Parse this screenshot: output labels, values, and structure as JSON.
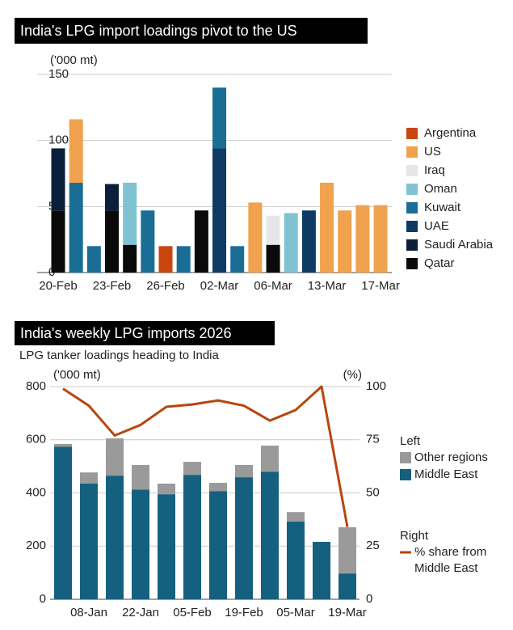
{
  "chart_data": [
    {
      "type": "bar",
      "stacked": true,
      "title": "India's LPG import loadings pivot to the US",
      "y_unit": "('000 mt)",
      "categories": [
        "20-Feb",
        null,
        null,
        "23-Feb",
        null,
        null,
        "26-Feb",
        null,
        null,
        "02-Mar",
        null,
        null,
        "06-Mar",
        null,
        null,
        "13-Mar",
        null,
        null,
        "17-Mar"
      ],
      "series": [
        {
          "name": "Qatar",
          "color": "#0a0a0a",
          "values": [
            47,
            null,
            null,
            47,
            21,
            null,
            null,
            null,
            47,
            null,
            null,
            null,
            21,
            null,
            null,
            null,
            null,
            null,
            null
          ]
        },
        {
          "name": "Saudi Arabia",
          "color": "#0b1e3a",
          "values": [
            47,
            null,
            null,
            20,
            null,
            null,
            null,
            null,
            null,
            null,
            null,
            null,
            null,
            null,
            null,
            null,
            null,
            null,
            null
          ]
        },
        {
          "name": "UAE",
          "color": "#0f3a63",
          "values": [
            null,
            null,
            null,
            null,
            null,
            null,
            null,
            null,
            null,
            94,
            null,
            null,
            null,
            null,
            47,
            null,
            null,
            null,
            null
          ]
        },
        {
          "name": "Kuwait",
          "color": "#1a6e96",
          "values": [
            null,
            68,
            20,
            null,
            null,
            47,
            null,
            20,
            null,
            46,
            20,
            null,
            null,
            null,
            null,
            null,
            null,
            null,
            null
          ]
        },
        {
          "name": "Oman",
          "color": "#7fc3d3",
          "values": [
            null,
            null,
            null,
            null,
            47,
            null,
            null,
            null,
            null,
            null,
            null,
            null,
            null,
            45,
            null,
            null,
            null,
            null,
            null
          ]
        },
        {
          "name": "Iraq",
          "color": "#e6e6ea",
          "values": [
            null,
            null,
            null,
            null,
            null,
            null,
            null,
            null,
            null,
            null,
            null,
            null,
            22,
            null,
            null,
            null,
            null,
            null,
            null
          ]
        },
        {
          "name": "US",
          "color": "#f0a24e",
          "values": [
            null,
            48,
            null,
            null,
            null,
            null,
            null,
            null,
            null,
            null,
            null,
            53,
            null,
            null,
            null,
            68,
            47,
            51,
            51
          ]
        },
        {
          "name": "Argentina",
          "color": "#c8470f",
          "values": [
            null,
            null,
            null,
            null,
            null,
            null,
            20,
            null,
            null,
            null,
            null,
            null,
            null,
            null,
            null,
            null,
            null,
            null,
            null
          ]
        }
      ],
      "ylim": [
        0,
        150
      ],
      "yticks": [
        0,
        50,
        100,
        150
      ],
      "grid": true
    },
    {
      "type": "bar",
      "stacked": true,
      "title": "India's weekly LPG imports 2026",
      "subtitle": "LPG tanker loadings heading to India",
      "y_unit": "('000 mt)",
      "y2_unit": "(%)",
      "legend_titles": [
        "Left",
        "Right"
      ],
      "categories": [
        null,
        "08-Jan",
        null,
        "22-Jan",
        null,
        "05-Feb",
        null,
        "19-Feb",
        null,
        "05-Mar",
        null,
        "19-Mar"
      ],
      "series": [
        {
          "name": "Middle East",
          "color": "#15607f",
          "values": [
            574,
            435,
            465,
            413,
            395,
            468,
            407,
            459,
            480,
            292,
            216,
            97
          ]
        },
        {
          "name": "Other regions",
          "color": "#9a9a9a",
          "values": [
            10,
            42,
            140,
            92,
            40,
            49,
            31,
            46,
            98,
            36,
            null,
            174
          ]
        },
        {
          "name": "% share from Middle East",
          "type": "line",
          "axis": "y2",
          "color": "#b8460e",
          "values": [
            99,
            91,
            77,
            82,
            90.5,
            91.6,
            93.5,
            91,
            84,
            89,
            100,
            34
          ]
        }
      ],
      "ylim": [
        0,
        800
      ],
      "yticks": [
        0,
        200,
        400,
        600,
        800
      ],
      "y2lim": [
        0,
        100
      ],
      "y2ticks": [
        0,
        25,
        50,
        75,
        100
      ],
      "grid": true
    }
  ]
}
